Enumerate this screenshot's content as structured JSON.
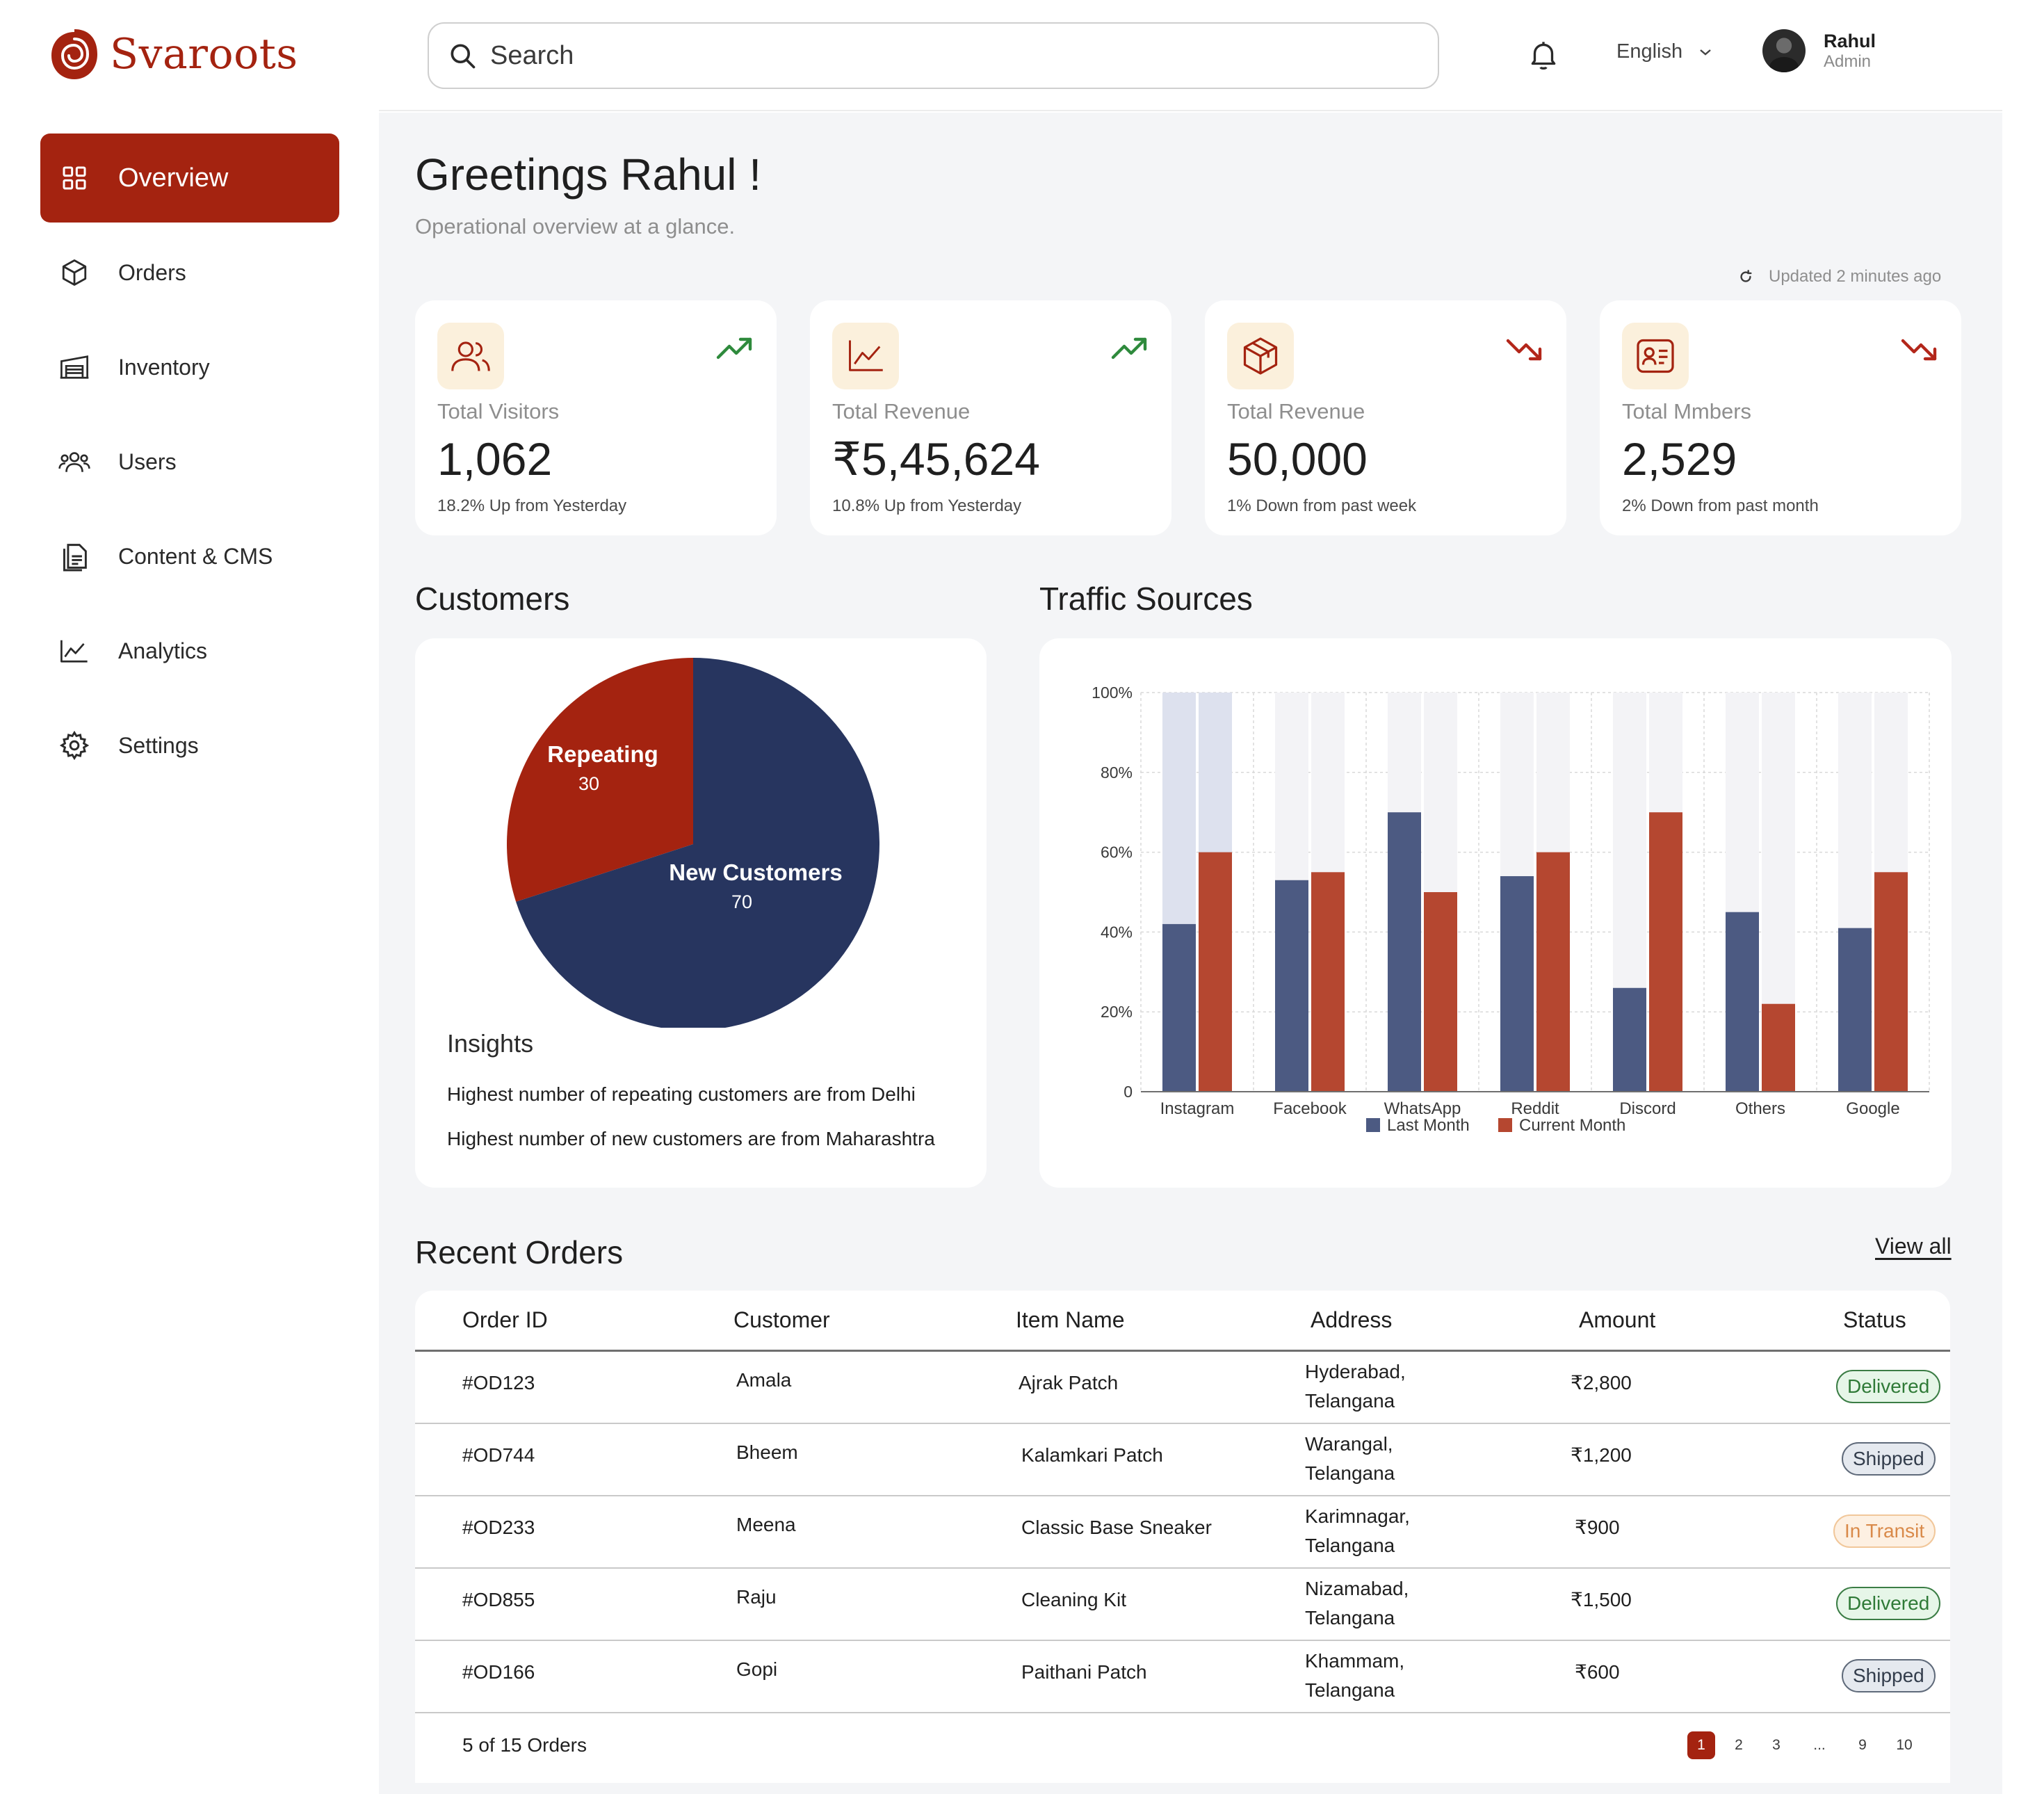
{
  "brand": {
    "name": "Svaroots",
    "color": "#a42310"
  },
  "sidebar": {
    "items": [
      {
        "label": "Overview",
        "icon": "grid-icon",
        "active": true
      },
      {
        "label": "Orders",
        "icon": "box-icon"
      },
      {
        "label": "Inventory",
        "icon": "warehouse-icon"
      },
      {
        "label": "Users",
        "icon": "users-icon"
      },
      {
        "label": "Content & CMS",
        "icon": "document-icon"
      },
      {
        "label": "Analytics",
        "icon": "line-chart-icon"
      },
      {
        "label": "Settings",
        "icon": "gear-icon"
      }
    ]
  },
  "header": {
    "search_placeholder": "Search",
    "language": "English",
    "user": {
      "name": "Rahul",
      "role": "Admin"
    }
  },
  "main": {
    "greeting": "Greetings Rahul !",
    "subtitle": "Operational overview at a glance.",
    "updated": "Updated 2 minutes ago"
  },
  "stats": [
    {
      "title": "Total Visitors",
      "value": "1,062",
      "note": "18.2% Up from Yesterday",
      "trend": "up",
      "icon": "users-icon"
    },
    {
      "title": "Total Revenue",
      "value": "₹5,45,624",
      "note": "10.8% Up from Yesterday",
      "trend": "up",
      "icon": "line-chart-icon"
    },
    {
      "title": "Total Revenue",
      "value": "50,000",
      "note": "1% Down from  past week",
      "trend": "down",
      "icon": "package-icon"
    },
    {
      "title": "Total Mmbers",
      "value": "2,529",
      "note": "2% Down from past month",
      "trend": "down",
      "icon": "id-card-icon"
    }
  ],
  "customers": {
    "title": "Customers",
    "insights_title": "Insights",
    "insights": [
      "Highest number of repeating customers are from Delhi",
      "Highest number of new customers are from Maharashtra"
    ]
  },
  "traffic": {
    "title": "Traffic Sources"
  },
  "chart_data": [
    {
      "type": "pie",
      "title": "Customers",
      "slices": [
        {
          "label": "Repeating",
          "value": 30,
          "color": "#a42310"
        },
        {
          "label": "New Customers",
          "value": 70,
          "color": "#27355f"
        }
      ]
    },
    {
      "type": "bar",
      "title": "Traffic Sources",
      "categories": [
        "Instagram",
        "Facebook",
        "WhatsApp",
        "Reddit",
        "Discord",
        "Others",
        "Google"
      ],
      "series": [
        {
          "name": "Last Month",
          "color": "#4c5a82",
          "values": [
            42,
            53,
            70,
            54,
            26,
            45,
            41
          ]
        },
        {
          "name": "Current Month",
          "color": "#b54730",
          "values": [
            60,
            55,
            50,
            60,
            70,
            22,
            55
          ]
        }
      ],
      "yticks": [
        "0",
        "20%",
        "40%",
        "60%",
        "80%",
        "100%"
      ],
      "ylim": [
        0,
        100
      ],
      "legend": "bottom",
      "grid": true
    }
  ],
  "orders": {
    "title": "Recent Orders",
    "view_all": "View all",
    "columns": [
      "Order ID",
      "Customer",
      "Item Name",
      "Address",
      "Amount",
      "Status"
    ],
    "rows": [
      {
        "id": "#OD123",
        "customer": "Amala",
        "item": "Ajrak Patch",
        "address1": "Hyderabad,",
        "address2": "Telangana",
        "amount": "₹2,800",
        "status": "Delivered",
        "status_type": "delivered"
      },
      {
        "id": "#OD744",
        "customer": "Bheem",
        "item": "Kalamkari Patch",
        "address1": "Warangal,",
        "address2": "Telangana",
        "amount": "₹1,200",
        "status": "Shipped",
        "status_type": "shipped"
      },
      {
        "id": "#OD233",
        "customer": "Meena",
        "item": "Classic Base Sneaker",
        "address1": "Karimnagar,",
        "address2": "Telangana",
        "amount": "₹900",
        "status": "In Transit",
        "status_type": "transit"
      },
      {
        "id": "#OD855",
        "customer": "Raju",
        "item": "Cleaning Kit",
        "address1": "Nizamabad,",
        "address2": "Telangana",
        "amount": "₹1,500",
        "status": "Delivered",
        "status_type": "delivered"
      },
      {
        "id": "#OD166",
        "customer": "Gopi",
        "item": "Paithani Patch",
        "address1": "Khammam,",
        "address2": "Telangana",
        "amount": "₹600",
        "status": "Shipped",
        "status_type": "shipped"
      }
    ],
    "summary": "5 of 15 Orders",
    "pages": [
      "1",
      "2",
      "3",
      "...",
      "9",
      "10"
    ],
    "current_page": "1"
  }
}
